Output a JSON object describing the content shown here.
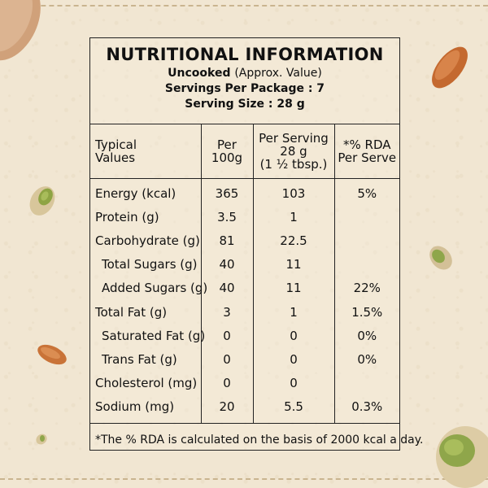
{
  "header": {
    "title": "NUTRITIONAL INFORMATION",
    "uncooked": "Uncooked",
    "approx": "(Approx. Value)",
    "servings_per_package": "Servings Per Package : 7",
    "serving_size": "Serving Size : 28 g"
  },
  "columns": {
    "typical_values": [
      "Typical",
      "Values"
    ],
    "per_100g": [
      "Per",
      "100g"
    ],
    "per_serving": [
      "Per Serving",
      "28 g",
      "(1 ½ tbsp.)"
    ],
    "rda": [
      "*% RDA",
      "Per Serve"
    ]
  },
  "rows": [
    {
      "label": "Energy (kcal)",
      "per100": "365",
      "perServing": "103",
      "rda": "5%"
    },
    {
      "label": "Protein (g)",
      "per100": "3.5",
      "perServing": "1",
      "rda": ""
    },
    {
      "label": "Carbohydrate (g)",
      "per100": "81",
      "perServing": "22.5",
      "rda": ""
    },
    {
      "label": "Total Sugars (g)",
      "per100": "40",
      "perServing": "11",
      "rda": ""
    },
    {
      "label": "Added Sugars (g)",
      "per100": "40",
      "perServing": "11",
      "rda": "22%"
    },
    {
      "label": "Total Fat (g)",
      "per100": "3",
      "perServing": "1",
      "rda": "1.5%"
    },
    {
      "label": "Saturated Fat (g)",
      "per100": "0",
      "perServing": "0",
      "rda": "0%"
    },
    {
      "label": "Trans Fat (g)",
      "per100": "0",
      "perServing": "0",
      "rda": "0%"
    },
    {
      "label": "Cholesterol (mg)",
      "per100": "0",
      "perServing": "0",
      "rda": ""
    },
    {
      "label": "Sodium (mg)",
      "per100": "20",
      "perServing": "5.5",
      "rda": "0.3%"
    }
  ],
  "footnote": "*The % RDA is calculated on the basis of 2000 kcal a day.",
  "colors": {
    "background": "#f1e6d2",
    "border": "#222222",
    "almond": "#c97338",
    "pistachio_shell": "#d9c9a2",
    "pistachio_nut": "#8fa64a"
  }
}
